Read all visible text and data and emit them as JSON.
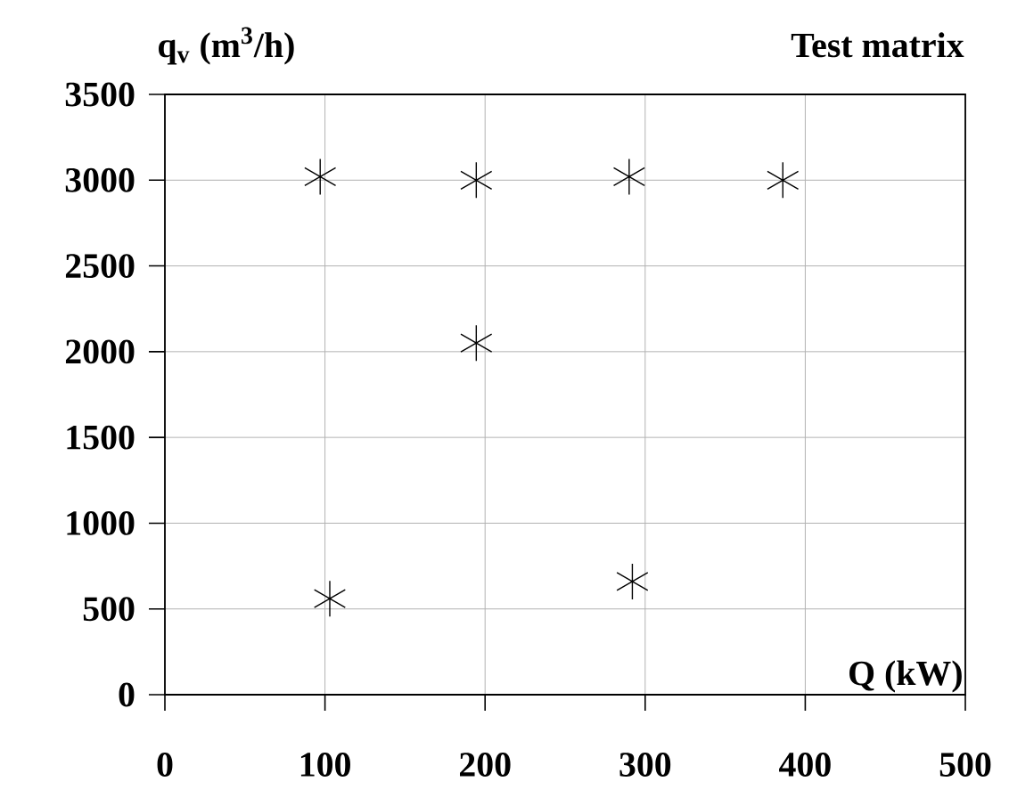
{
  "chart_data": {
    "type": "scatter",
    "title": "Test matrix",
    "xlabel": "Q (kW)",
    "ylabel": "q$_{v}$ (m$^{3}$/h)",
    "x": [
      97,
      194.5,
      290,
      386,
      194.5,
      103,
      292
    ],
    "values": [
      3020,
      3000,
      3020,
      3000,
      2050,
      560,
      660
    ],
    "color": "#000000",
    "marker": "cross",
    "grid": true,
    "xlim": [
      0,
      500
    ],
    "xticks": [
      0,
      100,
      200,
      300,
      400,
      500
    ],
    "ylim": [
      0,
      3500
    ],
    "yticks": [
      0,
      500,
      1000,
      1500,
      2000,
      2500,
      3000,
      3500
    ]
  }
}
